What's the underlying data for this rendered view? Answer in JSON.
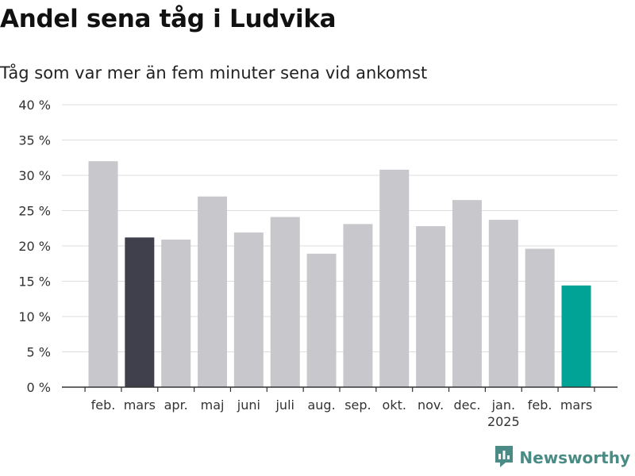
{
  "chart_data": {
    "type": "bar",
    "title": "Andel sena tåg i Ludvika",
    "subtitle": "Tåg som var mer än fem minuter sena vid ankomst",
    "categories": [
      "feb.",
      "mars",
      "apr.",
      "maj",
      "juni",
      "juli",
      "aug.",
      "sep.",
      "okt.",
      "nov.",
      "dec.",
      "jan.",
      "feb.",
      "mars"
    ],
    "year_label": "2025",
    "year_label_index": 11,
    "values": [
      32.0,
      21.2,
      20.9,
      27.0,
      21.9,
      24.1,
      18.9,
      23.1,
      30.8,
      22.8,
      26.5,
      23.7,
      19.6,
      14.4
    ],
    "bar_colors": [
      "#c8c7cc",
      "#403f4c",
      "#c8c7cc",
      "#c8c7cc",
      "#c8c7cc",
      "#c8c7cc",
      "#c8c7cc",
      "#c8c7cc",
      "#c8c7cc",
      "#c8c7cc",
      "#c8c7cc",
      "#c8c7cc",
      "#c8c7cc",
      "#00a396"
    ],
    "ylim": [
      0,
      40
    ],
    "yticks": [
      0,
      5,
      10,
      15,
      20,
      25,
      30,
      35,
      40
    ],
    "ytick_labels": [
      "0 %",
      "5 %",
      "10 %",
      "15 %",
      "20 %",
      "25 %",
      "30 %",
      "35 %",
      "40 %"
    ],
    "xlabel": "",
    "ylabel": "",
    "grid": true,
    "legend": "none"
  },
  "branding": {
    "logo_text": "Newsworthy",
    "logo_color": "#4a8c85"
  }
}
